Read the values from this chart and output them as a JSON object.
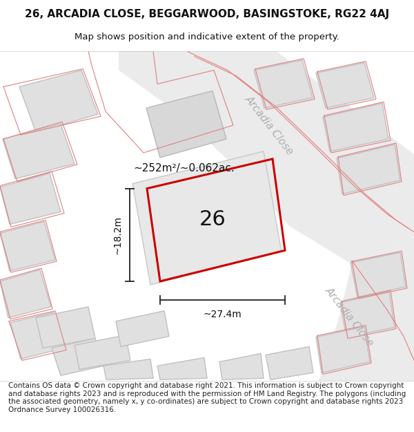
{
  "title_line1": "26, ARCADIA CLOSE, BEGGARWOOD, BASINGSTOKE, RG22 4AJ",
  "title_line2": "Map shows position and indicative extent of the property.",
  "footer_text": "Contains OS data © Crown copyright and database right 2021. This information is subject to Crown copyright and database rights 2023 and is reproduced with the permission of HM Land Registry. The polygons (including the associated geometry, namely x, y co-ordinates) are subject to Crown copyright and database rights 2023 Ordnance Survey 100026316.",
  "street_label1": "Arcadia Close",
  "street_label2": "Arcadia Close",
  "plot_label": "26",
  "area_label": "~252m²/~0.062ac.",
  "dim_width": "~27.4m",
  "dim_height": "~18.2m",
  "title_fontsize": 11,
  "subtitle_fontsize": 9.5,
  "footer_fontsize": 7.5
}
